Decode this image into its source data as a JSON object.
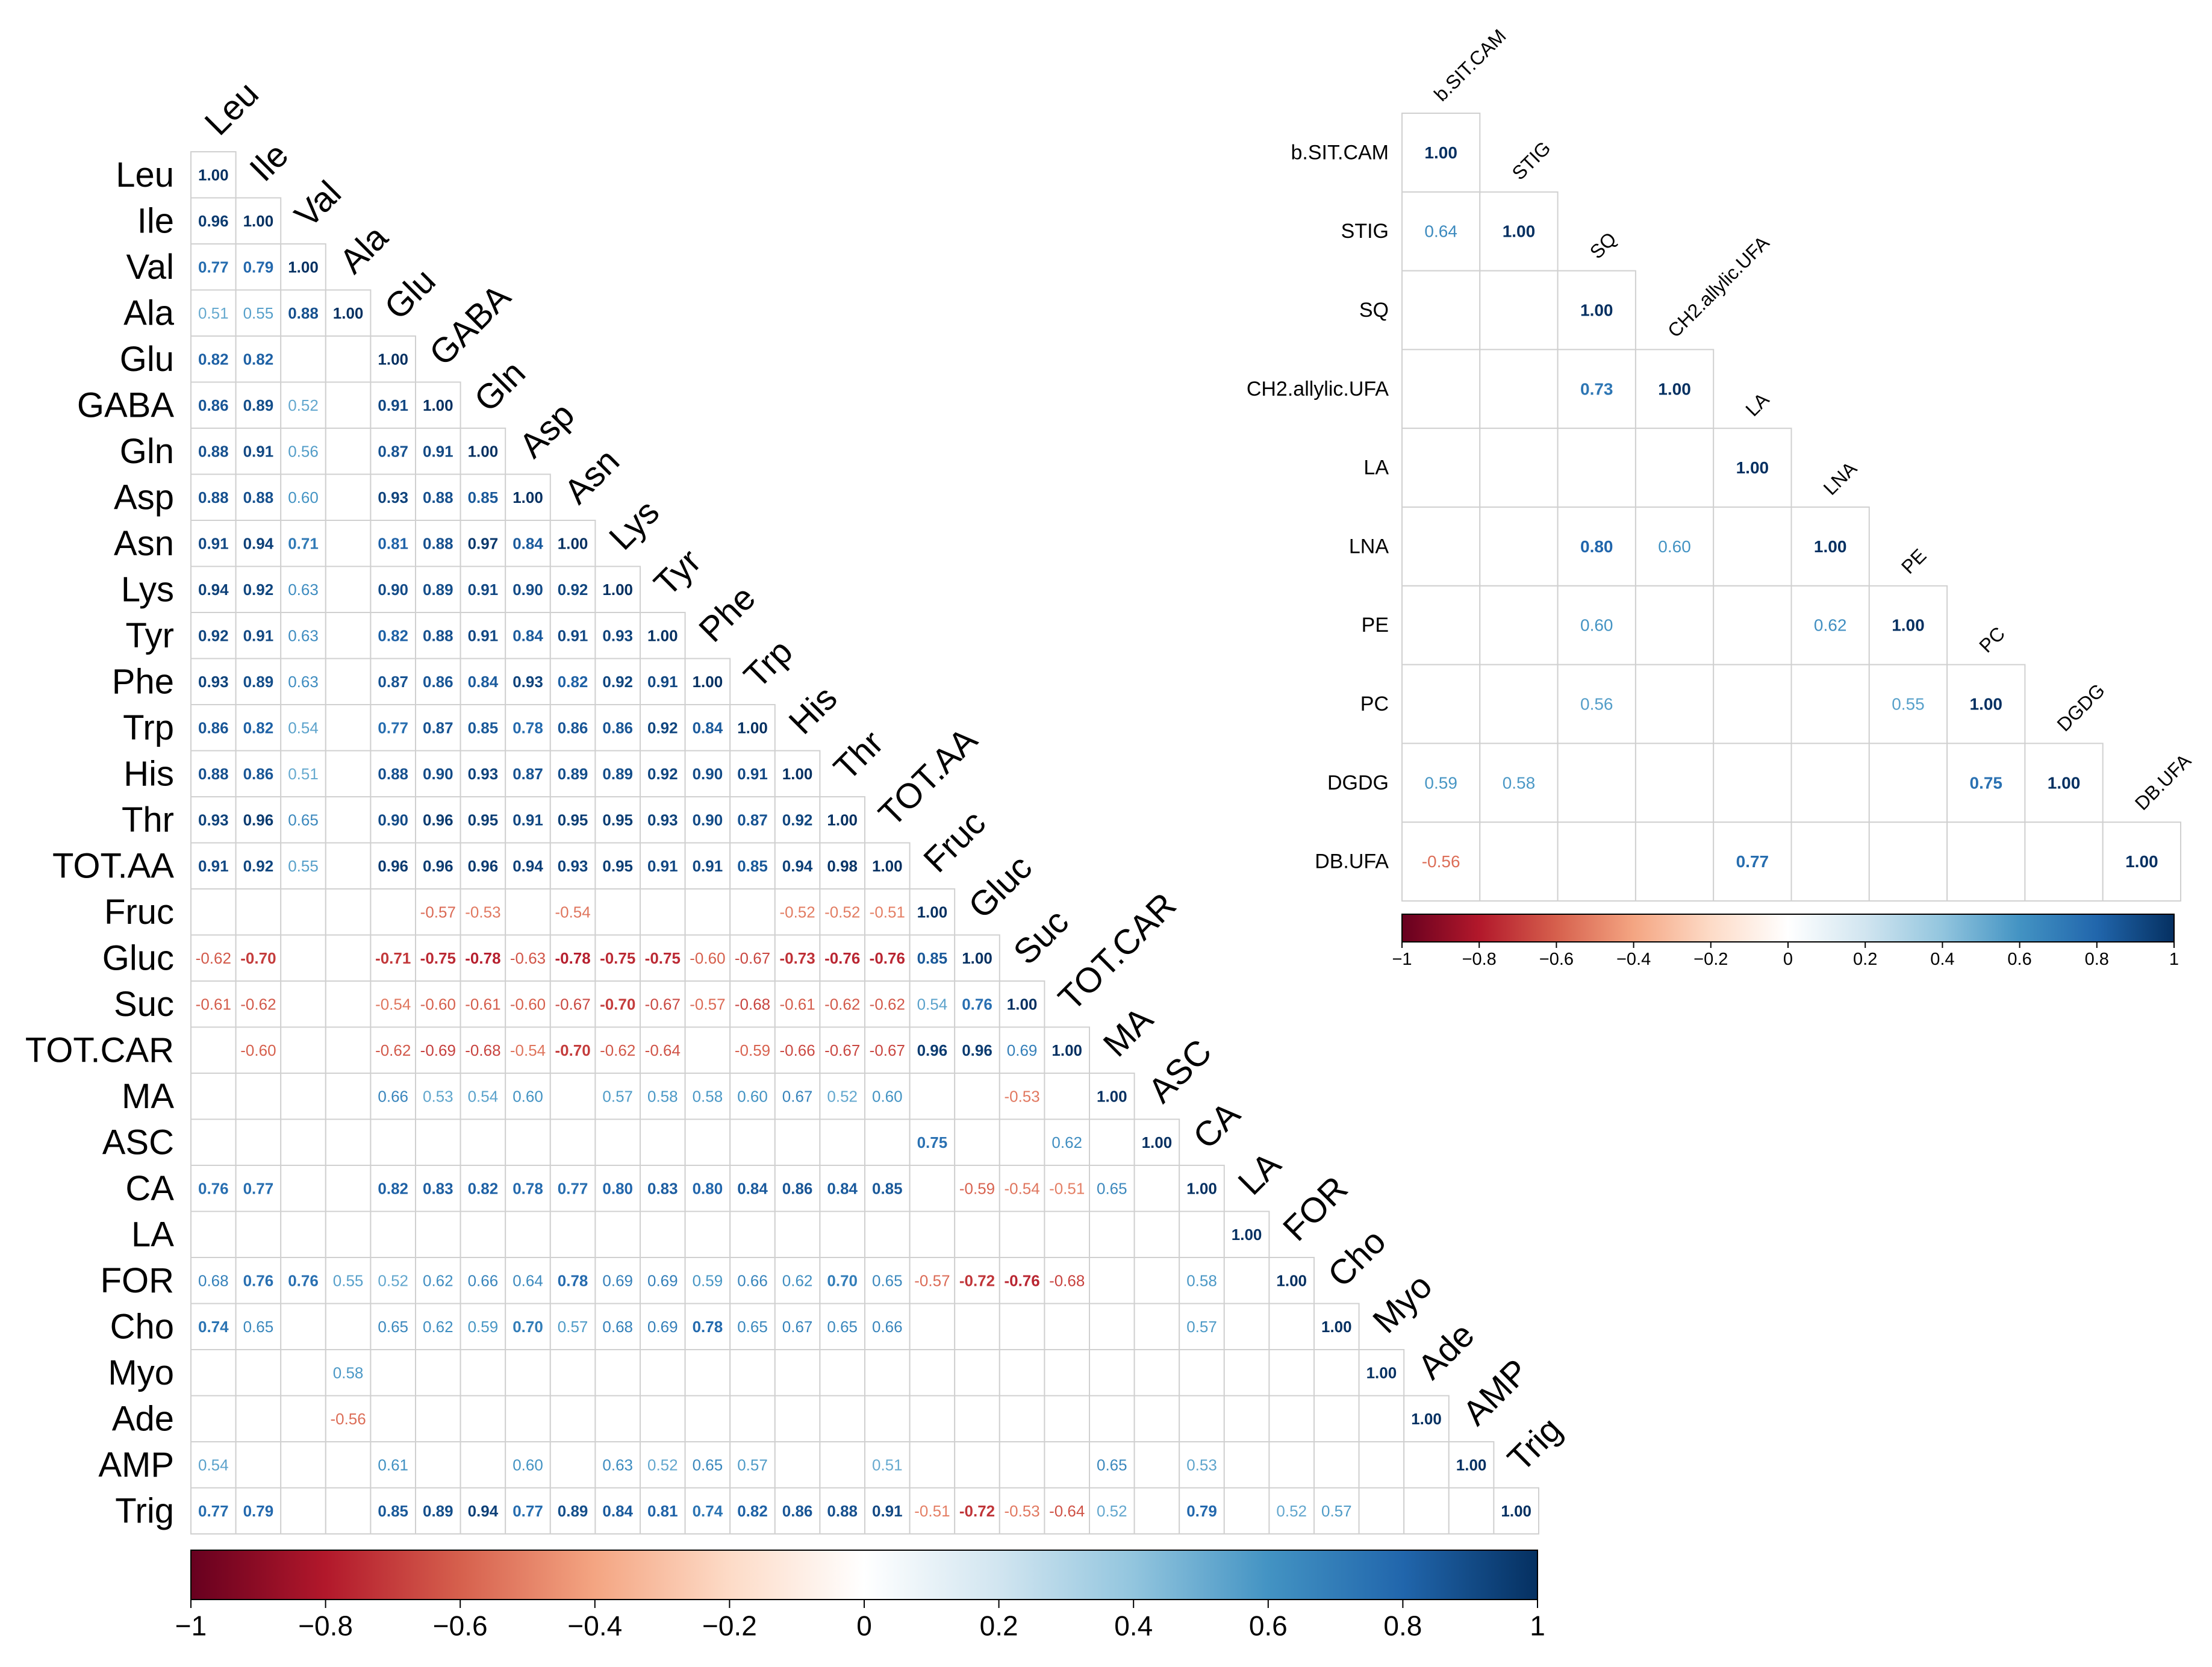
{
  "chart_data": [
    {
      "type": "heatmap",
      "title": "",
      "layout": "lower-triangle correlation matrix",
      "variables": [
        "Leu",
        "Ile",
        "Val",
        "Ala",
        "Glu",
        "GABA",
        "Gln",
        "Asp",
        "Asn",
        "Lys",
        "Tyr",
        "Phe",
        "Trp",
        "His",
        "Thr",
        "TOT.AA",
        "Fruc",
        "Gluc",
        "Suc",
        "TOT.CAR",
        "MA",
        "ASC",
        "CA",
        "LA",
        "FOR",
        "Cho",
        "Myo",
        "Ade",
        "AMP",
        "Trig"
      ],
      "rows": [
        [
          "1.00"
        ],
        [
          "0.96",
          "1.00"
        ],
        [
          "0.77",
          "0.79",
          "1.00"
        ],
        [
          "0.51",
          "0.55",
          "0.88",
          "1.00"
        ],
        [
          "0.82",
          "0.82",
          "",
          "",
          "1.00"
        ],
        [
          "0.86",
          "0.89",
          "0.52",
          "",
          "0.91",
          "1.00"
        ],
        [
          "0.88",
          "0.91",
          "0.56",
          "",
          "0.87",
          "0.91",
          "1.00"
        ],
        [
          "0.88",
          "0.88",
          "0.60",
          "",
          "0.93",
          "0.88",
          "0.85",
          "1.00"
        ],
        [
          "0.91",
          "0.94",
          "0.71",
          "",
          "0.81",
          "0.88",
          "0.97",
          "0.84",
          "1.00"
        ],
        [
          "0.94",
          "0.92",
          "0.63",
          "",
          "0.90",
          "0.89",
          "0.91",
          "0.90",
          "0.92",
          "1.00"
        ],
        [
          "0.92",
          "0.91",
          "0.63",
          "",
          "0.82",
          "0.88",
          "0.91",
          "0.84",
          "0.91",
          "0.93",
          "1.00"
        ],
        [
          "0.93",
          "0.89",
          "0.63",
          "",
          "0.87",
          "0.86",
          "0.84",
          "0.93",
          "0.82",
          "0.92",
          "0.91",
          "1.00"
        ],
        [
          "0.86",
          "0.82",
          "0.54",
          "",
          "0.77",
          "0.87",
          "0.85",
          "0.78",
          "0.86",
          "0.86",
          "0.92",
          "0.84",
          "1.00"
        ],
        [
          "0.88",
          "0.86",
          "0.51",
          "",
          "0.88",
          "0.90",
          "0.93",
          "0.87",
          "0.89",
          "0.89",
          "0.92",
          "0.90",
          "0.91",
          "1.00"
        ],
        [
          "0.93",
          "0.96",
          "0.65",
          "",
          "0.90",
          "0.96",
          "0.95",
          "0.91",
          "0.95",
          "0.95",
          "0.93",
          "0.90",
          "0.87",
          "0.92",
          "1.00"
        ],
        [
          "0.91",
          "0.92",
          "0.55",
          "",
          "0.96",
          "0.96",
          "0.96",
          "0.94",
          "0.93",
          "0.95",
          "0.91",
          "0.91",
          "0.85",
          "0.94",
          "0.98",
          "1.00"
        ],
        [
          "",
          "",
          "",
          "",
          "",
          "-0.57",
          "-0.53",
          "",
          "-0.54",
          "",
          "",
          "",
          "",
          "-0.52",
          "-0.52",
          "-0.51",
          "1.00"
        ],
        [
          "-0.62",
          "-0.70",
          "",
          "",
          "-0.71",
          "-0.75",
          "-0.78",
          "-0.63",
          "-0.78",
          "-0.75",
          "-0.75",
          "-0.60",
          "-0.67",
          "-0.73",
          "-0.76",
          "-0.76",
          "0.85",
          "1.00"
        ],
        [
          "-0.61",
          "-0.62",
          "",
          "",
          "-0.54",
          "-0.60",
          "-0.61",
          "-0.60",
          "-0.67",
          "-0.70",
          "-0.67",
          "-0.57",
          "-0.68",
          "-0.61",
          "-0.62",
          "-0.62",
          "0.54",
          "0.76",
          "1.00"
        ],
        [
          "",
          "-0.60",
          "",
          "",
          "-0.62",
          "-0.69",
          "-0.68",
          "-0.54",
          "-0.70",
          "-0.62",
          "-0.64",
          "",
          "-0.59",
          "-0.66",
          "-0.67",
          "-0.67",
          "0.96",
          "0.96",
          "0.69",
          "1.00"
        ],
        [
          "",
          "",
          "",
          "",
          "0.66",
          "0.53",
          "0.54",
          "0.60",
          "",
          "0.57",
          "0.58",
          "0.58",
          "0.60",
          "0.67",
          "0.52",
          "0.60",
          "",
          "",
          "-0.53",
          "",
          "1.00"
        ],
        [
          "",
          "",
          "",
          "",
          "",
          "",
          "",
          "",
          "",
          "",
          "",
          "",
          "",
          "",
          "",
          "",
          "0.75",
          "",
          "",
          "0.62",
          "",
          "1.00"
        ],
        [
          "0.76",
          "0.77",
          "",
          "",
          "0.82",
          "0.83",
          "0.82",
          "0.78",
          "0.77",
          "0.80",
          "0.83",
          "0.80",
          "0.84",
          "0.86",
          "0.84",
          "0.85",
          "",
          "-0.59",
          "-0.54",
          "-0.51",
          "0.65",
          "",
          "1.00"
        ],
        [
          "",
          "",
          "",
          "",
          "",
          "",
          "",
          "",
          "",
          "",
          "",
          "",
          "",
          "",
          "",
          "",
          "",
          "",
          "",
          "",
          "",
          "",
          "",
          "1.00"
        ],
        [
          "0.68",
          "0.76",
          "0.76",
          "0.55",
          "0.52",
          "0.62",
          "0.66",
          "0.64",
          "0.78",
          "0.69",
          "0.69",
          "0.59",
          "0.66",
          "0.62",
          "0.70",
          "0.65",
          "-0.57",
          "-0.72",
          "-0.76",
          "-0.68",
          "",
          "",
          "0.58",
          "",
          "1.00"
        ],
        [
          "0.74",
          "0.65",
          "",
          "",
          "0.65",
          "0.62",
          "0.59",
          "0.70",
          "0.57",
          "0.68",
          "0.69",
          "0.78",
          "0.65",
          "0.67",
          "0.65",
          "0.66",
          "",
          "",
          "",
          "",
          "",
          "",
          "0.57",
          "",
          "",
          "1.00"
        ],
        [
          "",
          "",
          "",
          "0.58",
          "",
          "",
          "",
          "",
          "",
          "",
          "",
          "",
          "",
          "",
          "",
          "",
          "",
          "",
          "",
          "",
          "",
          "",
          "",
          "",
          "",
          "",
          "1.00"
        ],
        [
          "",
          "",
          "",
          "-0.56",
          "",
          "",
          "",
          "",
          "",
          "",
          "",
          "",
          "",
          "",
          "",
          "",
          "",
          "",
          "",
          "",
          "",
          "",
          "",
          "",
          "",
          "",
          "",
          "1.00"
        ],
        [
          "0.54",
          "",
          "",
          "",
          "0.61",
          "",
          "",
          "0.60",
          "",
          "0.63",
          "0.52",
          "0.65",
          "0.57",
          "",
          "",
          "0.51",
          "",
          "",
          "",
          "",
          "0.65",
          "",
          "0.53",
          "",
          "",
          "",
          "",
          "",
          "1.00"
        ],
        [
          "0.77",
          "0.79",
          "",
          "",
          "0.85",
          "0.89",
          "0.94",
          "0.77",
          "0.89",
          "0.84",
          "0.81",
          "0.74",
          "0.82",
          "0.86",
          "0.88",
          "0.91",
          "-0.51",
          "-0.72",
          "-0.53",
          "-0.64",
          "0.52",
          "",
          "0.79",
          "",
          "0.52",
          "0.57",
          "",
          "",
          "",
          "1.00"
        ]
      ],
      "colorbar": {
        "range": [
          -1,
          1
        ],
        "ticks": [
          "−1",
          "−0.8",
          "−0.6",
          "−0.4",
          "−0.2",
          "0",
          "0.2",
          "0.4",
          "0.6",
          "0.8",
          "1"
        ],
        "low_color": "#67001f",
        "mid_color": "#ffffff",
        "high_color": "#053061"
      }
    },
    {
      "type": "heatmap",
      "title": "",
      "layout": "lower-triangle correlation matrix",
      "variables": [
        "b.SIT.CAM",
        "STIG",
        "SQ",
        "CH2.allylic.UFA",
        "LA",
        "LNA",
        "PE",
        "PC",
        "DGDG",
        "DB.UFA"
      ],
      "rows": [
        [
          "1.00"
        ],
        [
          "0.64",
          "1.00"
        ],
        [
          "",
          "",
          "1.00"
        ],
        [
          "",
          "",
          "0.73",
          "1.00"
        ],
        [
          "",
          "",
          "",
          "",
          "1.00"
        ],
        [
          "",
          "",
          "0.80",
          "0.60",
          "",
          "1.00"
        ],
        [
          "",
          "",
          "0.60",
          "",
          "",
          "0.62",
          "1.00"
        ],
        [
          "",
          "",
          "0.56",
          "",
          "",
          "",
          "0.55",
          "1.00"
        ],
        [
          "0.59",
          "0.58",
          "",
          "",
          "",
          "",
          "",
          "0.75",
          "1.00"
        ],
        [
          "-0.56",
          "",
          "",
          "",
          "0.77",
          "",
          "",
          "",
          "",
          "1.00"
        ]
      ],
      "colorbar": {
        "range": [
          -1,
          1
        ],
        "ticks": [
          "−1",
          "−0.8",
          "−0.6",
          "−0.4",
          "−0.2",
          "0",
          "0.2",
          "0.4",
          "0.6",
          "0.8",
          "1"
        ],
        "low_color": "#67001f",
        "mid_color": "#ffffff",
        "high_color": "#053061"
      }
    }
  ]
}
